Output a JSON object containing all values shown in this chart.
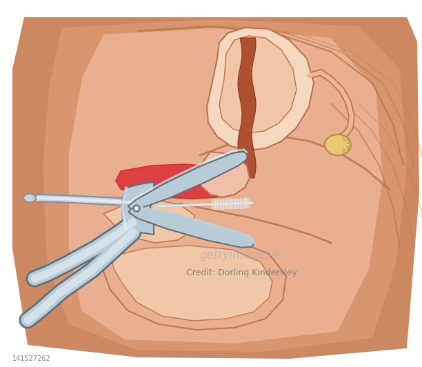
{
  "bg_color": "#ffffff",
  "skin_outer": "#cc8860",
  "skin_mid": "#d9956e",
  "skin_light": "#e8b090",
  "skin_lighter": "#f0c8a8",
  "skin_lightest": "#f8dfc8",
  "outline_dark": "#b06840",
  "outline_med": "#c07850",
  "outline_light": "#cc9070",
  "uterus_fill": "#f5d8c0",
  "uterus_outline": "#c07050",
  "endometrium": "#b05030",
  "endometrium_dark": "#8b3520",
  "cervix_fill": "#f0c0a8",
  "vaginal_red": "#cc3030",
  "vaginal_fill": "#dd4040",
  "spec_light": "#d8e4ee",
  "spec_mid": "#b8ccd8",
  "spec_dark": "#8090a0",
  "spec_outline": "#607080",
  "spec_highlight": "#eaf0f6",
  "handle_light": "#c8d4dc",
  "handle_dark": "#909aa4",
  "brush_white": "#f0f0f0",
  "brush_gray": "#c8c8c8",
  "brush_outline": "#a0a0a0",
  "ovary_fill": "#e8c870",
  "ovary_outline": "#b09040",
  "fallopian_fill": "#f0b890",
  "watermark": "#999999",
  "credit_color": "#777777",
  "id_color": "#888888"
}
